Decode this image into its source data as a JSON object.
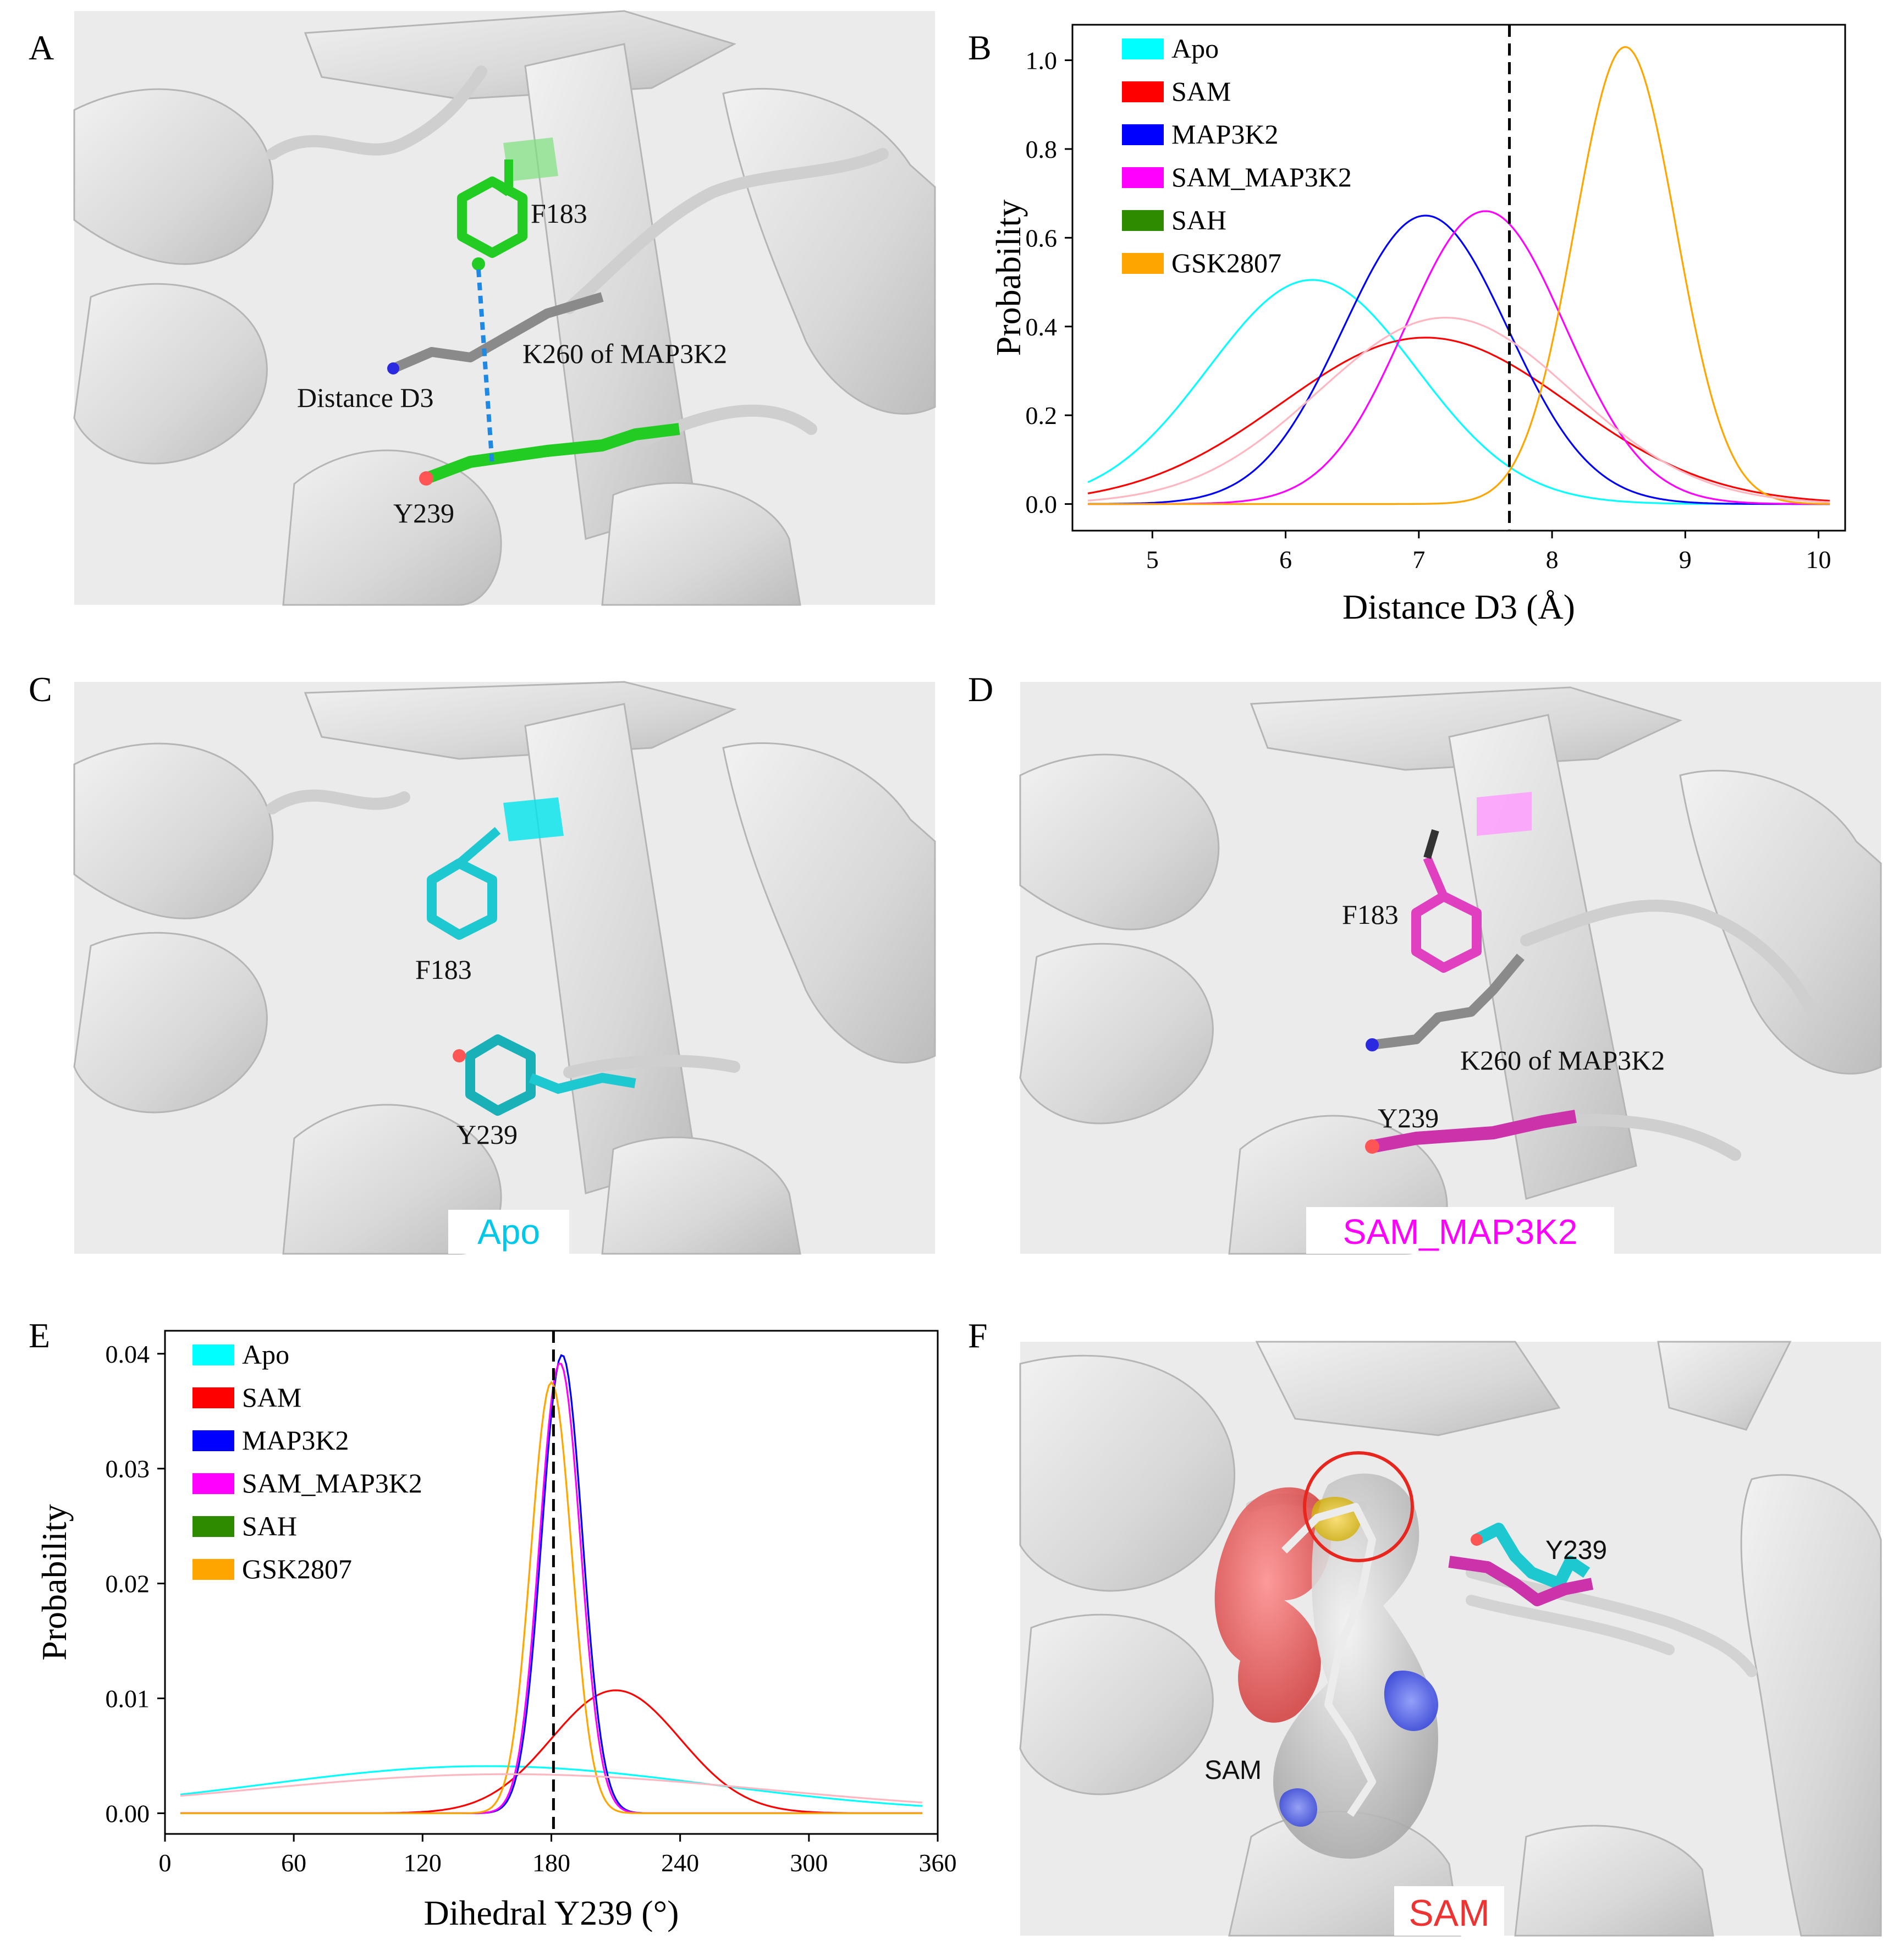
{
  "panel_letters": [
    "A",
    "B",
    "C",
    "D",
    "E",
    "F"
  ],
  "panel_a": {
    "labels": {
      "f183": "F183",
      "k260": "K260 of MAP3K2",
      "distance": "Distance D3",
      "y239": "Y239"
    },
    "colors": {
      "ring": "#22cc22",
      "distance_line": "#1e88e5"
    }
  },
  "panel_c": {
    "labels": {
      "f183": "F183",
      "y239": "Y239"
    },
    "caption": "Apo",
    "caption_color": "#00c8e8"
  },
  "panel_d": {
    "labels": {
      "f183": "F183",
      "k260": "K260 of MAP3K2",
      "y239": "Y239"
    },
    "caption": "SAM_MAP3K2",
    "caption_color": "#ff00ff"
  },
  "panel_f": {
    "labels": {
      "y239": "Y239",
      "sam": "SAM"
    },
    "caption": "SAM",
    "caption_color": "#ee3333"
  },
  "chart_data": [
    {
      "panel": "B",
      "type": "line",
      "xlabel": "Distance D3 (Å)",
      "ylabel": "Probability",
      "xlim": [
        4.4,
        10.2
      ],
      "ylim": [
        -0.06,
        1.08
      ],
      "xticks": [
        5,
        6,
        7,
        8,
        9,
        10
      ],
      "yticks": [
        0.0,
        0.2,
        0.4,
        0.6,
        0.8,
        1.0
      ],
      "ytick_labels": [
        "0.0",
        "0.2",
        "0.4",
        "0.6",
        "0.8",
        "1.0"
      ],
      "vline": 7.68,
      "legend_position": "top-left",
      "series": [
        {
          "name": "Apo",
          "color": "#00ffff",
          "gauss": {
            "mu": 6.2,
            "sigma": 0.78,
            "amp": 0.505
          }
        },
        {
          "name": "SAM",
          "color": "#ff0000",
          "gauss": {
            "mu": 7.05,
            "sigma": 1.08,
            "amp": 0.375
          }
        },
        {
          "name": "MAP3K2",
          "color": "#0000ff",
          "gauss": {
            "mu": 7.05,
            "sigma": 0.62,
            "amp": 0.65
          }
        },
        {
          "name": "SAM_MAP3K2",
          "color": "#ff00ff",
          "gauss": {
            "mu": 7.5,
            "sigma": 0.6,
            "amp": 0.66
          }
        },
        {
          "name": "SAH",
          "color": "#2e8b00",
          "legend_only": true
        },
        {
          "name": "GSK2807",
          "color": "#ffa500",
          "gauss": {
            "mu": 8.55,
            "sigma": 0.38,
            "amp": 1.03
          }
        },
        {
          "name": "",
          "color": "#ffb6c1",
          "gauss": {
            "mu": 7.2,
            "sigma": 0.95,
            "amp": 0.42
          },
          "no_legend": true
        }
      ]
    },
    {
      "panel": "E",
      "type": "line",
      "xlabel": "Dihedral Y239 (°)",
      "ylabel": "Probability",
      "xlim": [
        0,
        360
      ],
      "ylim": [
        -0.0018,
        0.042
      ],
      "xticks": [
        0,
        60,
        120,
        180,
        240,
        300,
        360
      ],
      "yticks": [
        0.0,
        0.01,
        0.02,
        0.03,
        0.04
      ],
      "ytick_labels": [
        "0.00",
        "0.01",
        "0.02",
        "0.03",
        "0.04"
      ],
      "vline": 181,
      "legend_position": "top-left",
      "series": [
        {
          "name": "Apo",
          "color": "#00ffff",
          "gauss": {
            "mu": 150,
            "sigma": 105,
            "amp": 0.0041
          }
        },
        {
          "name": "SAM",
          "color": "#ff0000",
          "gauss": {
            "mu": 210,
            "sigma": 30,
            "amp": 0.0107
          }
        },
        {
          "name": "MAP3K2",
          "color": "#0000ff",
          "gauss": {
            "mu": 185,
            "sigma": 9.5,
            "amp": 0.0399
          }
        },
        {
          "name": "SAM_MAP3K2",
          "color": "#ff00ff",
          "gauss": {
            "mu": 184,
            "sigma": 9.5,
            "amp": 0.0392
          }
        },
        {
          "name": "SAH",
          "color": "#2e8b00",
          "legend_only": true
        },
        {
          "name": "GSK2807",
          "color": "#ffa500",
          "gauss": {
            "mu": 180,
            "sigma": 9.5,
            "amp": 0.0375
          }
        },
        {
          "name": "",
          "color": "#ffb6c1",
          "gauss": {
            "mu": 160,
            "sigma": 120,
            "amp": 0.0034
          },
          "no_legend": true
        }
      ]
    }
  ]
}
